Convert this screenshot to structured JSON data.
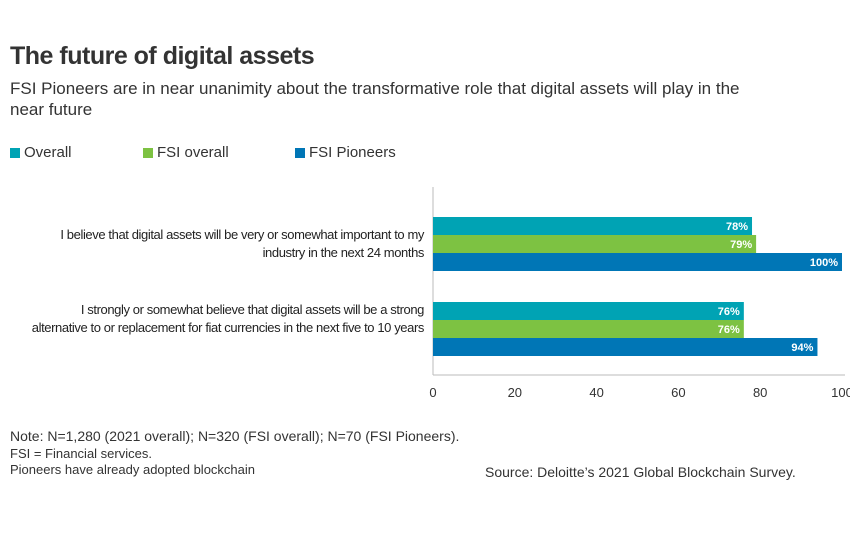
{
  "chart_data": {
    "type": "bar",
    "orientation": "horizontal",
    "title": "The future of digital assets",
    "subtitle": "FSI Pioneers are in near unanimity about the transformative role that digital assets will play in the near future",
    "categories": [
      "I believe that digital assets will be very or somewhat important to my industry in the next 24 months",
      "I strongly or somewhat believe that digital assets will be a strong alternative to or replacement for fiat currencies in the next five to 10 years"
    ],
    "series": [
      {
        "name": "Overall",
        "color": "#00A3B4",
        "values": [
          78,
          76
        ],
        "labels": [
          "78%",
          "76%"
        ]
      },
      {
        "name": "FSI overall",
        "color": "#7DC242",
        "values": [
          79,
          76
        ],
        "labels": [
          "79%",
          "76%"
        ]
      },
      {
        "name": "FSI Pioneers",
        "color": "#0076B6",
        "values": [
          100,
          94
        ],
        "labels": [
          "100%",
          "94%"
        ]
      }
    ],
    "xlim": [
      0,
      100
    ],
    "xticks": [
      "0",
      "20",
      "40",
      "60",
      "80",
      "100"
    ],
    "legend": "top-left",
    "grid": false
  },
  "notes": {
    "note": "Note:  N=1,280 (2021 overall); N=320 (FSI overall); N=70 (FSI Pioneers).",
    "fsi": "FSI = Financial services.",
    "pioneers": "Pioneers have already adopted blockchain",
    "source": "Source: Deloitte’s 2021 Global Blockchain Survey."
  }
}
